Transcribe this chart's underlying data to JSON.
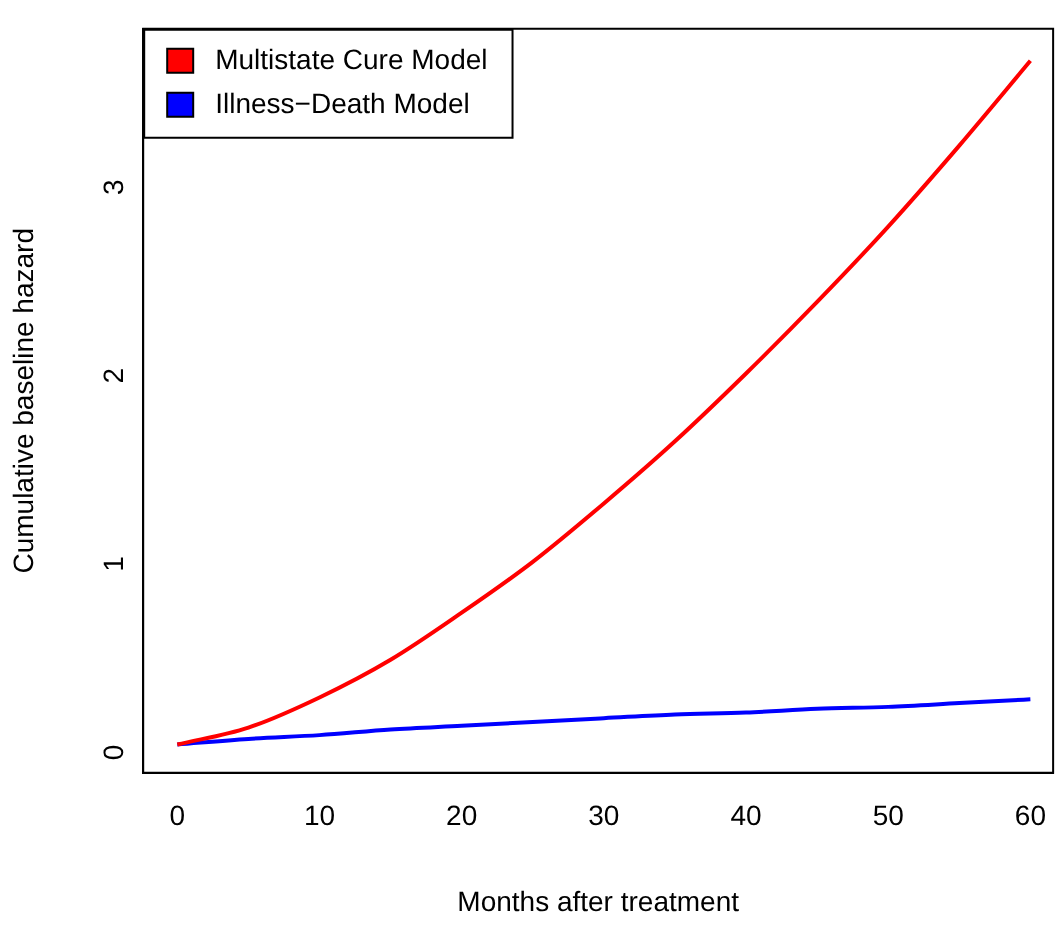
{
  "chart_data": {
    "type": "line",
    "xlabel": "Months after treatment",
    "ylabel": "Cumulative baseline hazard",
    "x": [
      0,
      5,
      10,
      15,
      20,
      25,
      30,
      35,
      40,
      45,
      50,
      55,
      60
    ],
    "series": [
      {
        "name": "Multistate Cure Model",
        "color": "#ff0000",
        "values": [
          0,
          0.09,
          0.25,
          0.45,
          0.7,
          0.97,
          1.28,
          1.61,
          1.97,
          2.35,
          2.75,
          3.18,
          3.63
        ]
      },
      {
        "name": "Illness−Death Model",
        "color": "#0000ff",
        "values": [
          0,
          0.03,
          0.05,
          0.08,
          0.1,
          0.12,
          0.14,
          0.16,
          0.17,
          0.19,
          0.2,
          0.22,
          0.24
        ]
      }
    ],
    "xlim": [
      -2.4,
      61.6
    ],
    "ylim": [
      -0.15,
      3.8
    ],
    "xticks": [
      0,
      10,
      20,
      30,
      40,
      50,
      60
    ],
    "yticks": [
      0,
      1,
      2,
      3
    ],
    "grid": false,
    "legend": "top left",
    "marker": "none",
    "line_style": "solid"
  }
}
